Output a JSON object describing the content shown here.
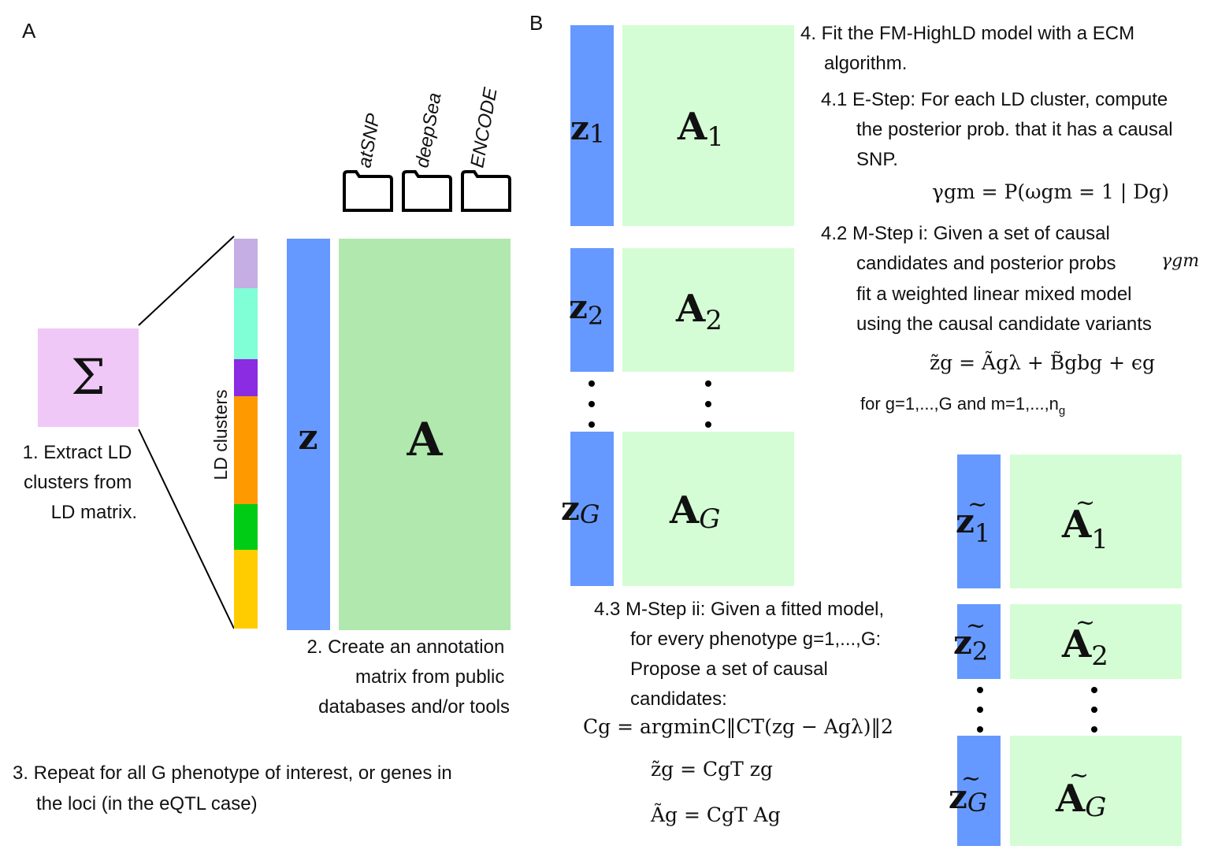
{
  "panel_a": {
    "label": "A",
    "sigma_symbol": "Σ",
    "step1": [
      "1. Extract LD",
      "clusters from",
      "LD matrix."
    ],
    "ld_axis_label": "LD clusters",
    "ld_cluster_colors": [
      "#c4aee3",
      "#80ffd6",
      "#8b2be2",
      "#ff9900",
      "#00cc16",
      "#ffcc00"
    ],
    "z_label": "z",
    "a_label": "A",
    "sources": [
      "atSNP",
      "deepSea",
      "ENCODE"
    ],
    "step2": [
      "2. Create an annotation",
      "matrix from public",
      "databases and/or tools"
    ],
    "step3": [
      "3. Repeat for all G phenotype of interest, or genes in",
      "the loci (in the eQTL case)"
    ]
  },
  "panel_b": {
    "label": "B",
    "blocks": [
      {
        "z": "z",
        "z_sub": "1",
        "a": "A",
        "a_sub": "1"
      },
      {
        "z": "z",
        "z_sub": "2",
        "a": "A",
        "a_sub": "2"
      },
      {
        "z": "z",
        "z_sub": "G",
        "a": "A",
        "a_sub": "G"
      }
    ],
    "step4": [
      "4. Fit the FM-HighLD model with a ECM",
      "algorithm."
    ],
    "step41": [
      "4.1 E-Step: For each LD cluster, compute",
      "the posterior prob. that it has a causal",
      "SNP."
    ],
    "eq_gamma": "γgm = P(ωgm = 1 | Dg)",
    "step42": [
      "4.2 M-Step i: Given a set of causal",
      "candidates and posterior probs",
      "fit a weighted linear mixed model",
      "using the causal candidate variants"
    ],
    "gamma_inline": "γgm",
    "eq_lmm": "z̃g = Ãgλ + B̃gbg + ϵg",
    "for_line": "for g=1,...,G and m=1,...,n",
    "for_line_sub": "g",
    "step43": [
      "4.3 M-Step ii: Given a fitted model,",
      "for every phenotype g=1,...,G:",
      "Propose a set of causal",
      "candidates:"
    ],
    "eq_c": "Cg = argminC‖CT(zg − Agλ)‖2",
    "eq_zt": "z̃g = CgT zg",
    "eq_at": "Ãg = CgT Ag",
    "tilde_blocks": [
      {
        "z": "z",
        "z_sub": "1",
        "a": "A",
        "a_sub": "1"
      },
      {
        "z": "z",
        "z_sub": "2",
        "a": "A",
        "a_sub": "2"
      },
      {
        "z": "z",
        "z_sub": "G",
        "a": "A",
        "a_sub": "G"
      }
    ]
  },
  "colors": {
    "z_bar": "#6699ff",
    "a_matrix": "#b0e8ae",
    "a_block": "#d5fdd5",
    "sigma_box": "#f0c8f8"
  }
}
